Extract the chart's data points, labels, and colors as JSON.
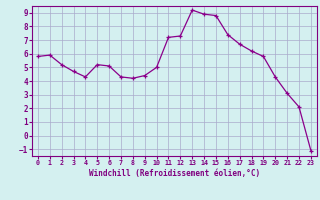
{
  "x": [
    0,
    1,
    2,
    3,
    4,
    5,
    6,
    7,
    8,
    9,
    10,
    11,
    12,
    13,
    14,
    15,
    16,
    17,
    18,
    19,
    20,
    21,
    22,
    23
  ],
  "y": [
    5.8,
    5.9,
    5.2,
    4.7,
    4.3,
    5.2,
    5.1,
    4.3,
    4.2,
    4.4,
    5.0,
    7.2,
    7.3,
    9.2,
    8.9,
    8.8,
    7.4,
    6.7,
    6.2,
    5.8,
    4.3,
    3.1,
    2.1,
    -1.1
  ],
  "xlim": [
    -0.5,
    23.5
  ],
  "ylim": [
    -1.5,
    9.5
  ],
  "xticks": [
    0,
    1,
    2,
    3,
    4,
    5,
    6,
    7,
    8,
    9,
    10,
    11,
    12,
    13,
    14,
    15,
    16,
    17,
    18,
    19,
    20,
    21,
    22,
    23
  ],
  "yticks": [
    -1,
    0,
    1,
    2,
    3,
    4,
    5,
    6,
    7,
    8,
    9
  ],
  "xlabel": "Windchill (Refroidissement éolien,°C)",
  "line_color": "#8B008B",
  "marker": "+",
  "bg_color": "#d4f0f0",
  "grid_color": "#aaaacc",
  "label_color": "#800080",
  "tick_fontsize": 5.5,
  "xlabel_fontsize": 5.5
}
